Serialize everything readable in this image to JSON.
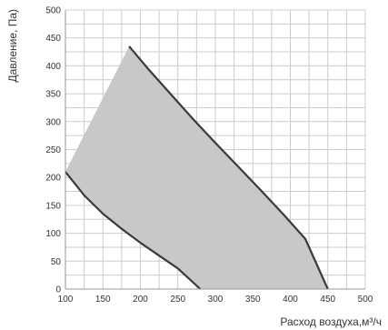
{
  "chart_data": {
    "type": "area",
    "title": "",
    "xlabel": "Расход воздуха,м³/ч",
    "ylabel": "Давление, Па)",
    "xlim": [
      100,
      500
    ],
    "ylim": [
      0,
      500
    ],
    "x_ticks": [
      100,
      150,
      200,
      250,
      300,
      350,
      400,
      450,
      500
    ],
    "y_ticks": [
      0,
      50,
      100,
      150,
      200,
      250,
      300,
      350,
      400,
      450,
      500
    ],
    "x_minor_step": 25,
    "y_minor_step": 25,
    "grid": true,
    "legend": "none",
    "series": [
      {
        "values": [
          [
            185,
            435
          ],
          [
            210,
            395
          ],
          [
            240,
            350
          ],
          [
            270,
            305
          ],
          [
            300,
            262
          ],
          [
            330,
            220
          ],
          [
            360,
            178
          ],
          [
            390,
            135
          ],
          [
            420,
            90
          ],
          [
            450,
            0
          ]
        ]
      },
      {
        "values": [
          [
            100,
            210
          ],
          [
            125,
            168
          ],
          [
            150,
            135
          ],
          [
            175,
            108
          ],
          [
            200,
            83
          ],
          [
            225,
            60
          ],
          [
            250,
            37
          ],
          [
            280,
            0
          ]
        ]
      }
    ],
    "colors": {
      "fill": "#c8c8c8",
      "line": "#3a3a3a",
      "grid": "#cccccc",
      "text": "#333333"
    }
  }
}
